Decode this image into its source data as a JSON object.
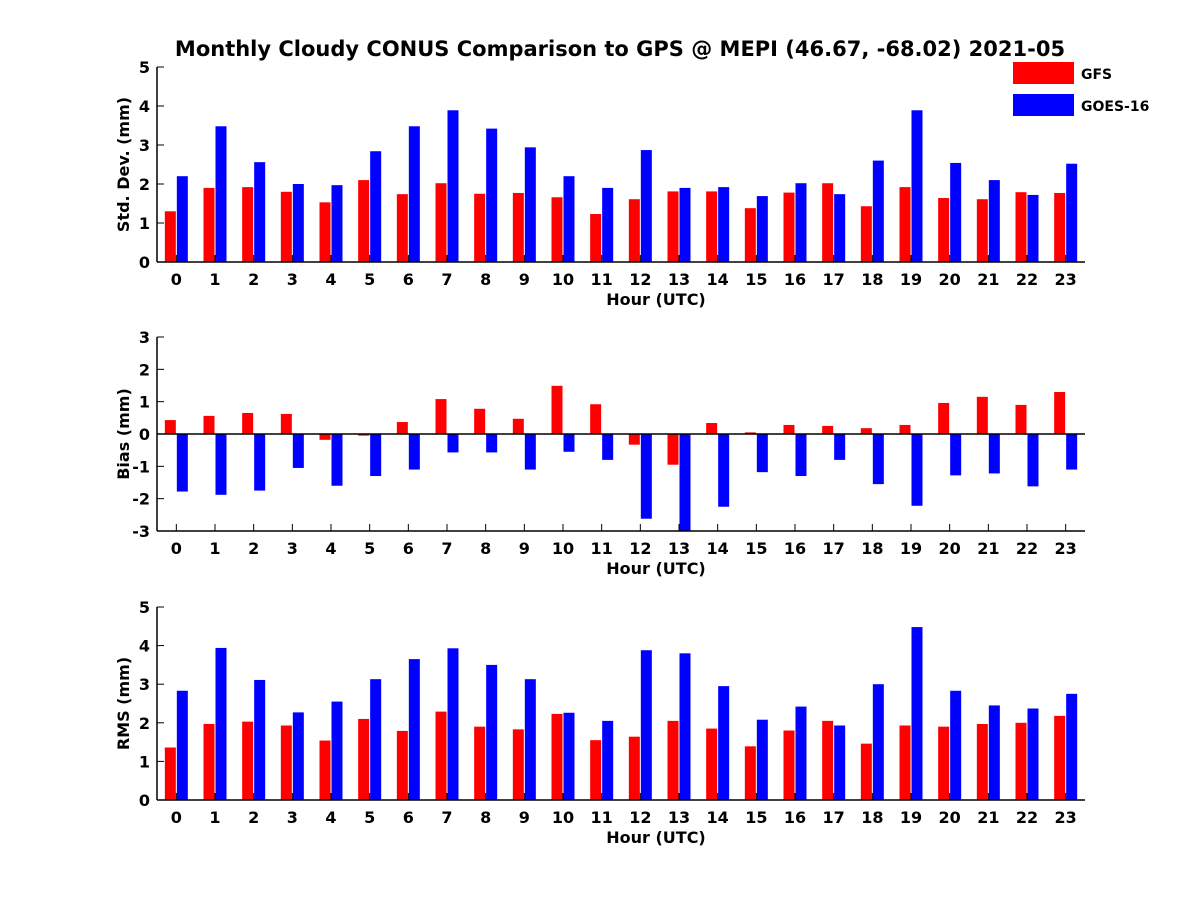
{
  "chart_data": {
    "title": "Monthly Cloudy CONUS Comparison to GPS @ MEPI (46.67, -68.02) 2021-05",
    "legend": {
      "placement": "top-right",
      "entries": [
        {
          "name": "GFS",
          "color": "#ff0000"
        },
        {
          "name": "GOES-16",
          "color": "#0000ff"
        }
      ]
    },
    "categories": [
      "0",
      "1",
      "2",
      "3",
      "4",
      "5",
      "6",
      "7",
      "8",
      "9",
      "10",
      "11",
      "12",
      "13",
      "14",
      "15",
      "16",
      "17",
      "18",
      "19",
      "20",
      "21",
      "22",
      "23"
    ],
    "panels": [
      {
        "type": "bar",
        "xlabel": "Hour (UTC)",
        "ylabel": "Std. Dev. (mm)",
        "ylim": [
          0,
          5
        ],
        "yticks": [
          "0",
          "1",
          "2",
          "3",
          "4",
          "5"
        ],
        "series": [
          {
            "name": "GFS",
            "color": "#ff0000",
            "values": [
              1.3,
              1.9,
              1.92,
              1.8,
              1.53,
              2.1,
              1.74,
              2.02,
              1.75,
              1.77,
              1.66,
              1.23,
              1.61,
              1.81,
              1.81,
              1.38,
              1.78,
              2.02,
              1.43,
              1.92,
              1.64,
              1.61,
              1.79,
              1.77
            ]
          },
          {
            "name": "GOES-16",
            "color": "#0000ff",
            "values": [
              2.2,
              3.48,
              2.56,
              2.0,
              1.97,
              2.84,
              3.48,
              3.89,
              3.42,
              2.94,
              2.2,
              1.9,
              2.87,
              1.9,
              1.92,
              1.69,
              2.02,
              1.74,
              2.6,
              3.89,
              2.54,
              2.1,
              1.72,
              2.52
            ]
          }
        ]
      },
      {
        "type": "bar",
        "xlabel": "Hour (UTC)",
        "ylabel": "Bias (mm)",
        "ylim": [
          -3,
          3
        ],
        "yticks": [
          "-3",
          "-2",
          "-1",
          "0",
          "1",
          "2",
          "3"
        ],
        "series": [
          {
            "name": "GFS",
            "color": "#ff0000",
            "values": [
              0.43,
              0.56,
              0.65,
              0.62,
              -0.18,
              -0.05,
              0.37,
              1.08,
              0.78,
              0.47,
              1.49,
              0.92,
              -0.33,
              -0.95,
              0.34,
              0.05,
              0.28,
              0.25,
              0.18,
              0.28,
              0.96,
              1.15,
              0.9,
              1.3
            ]
          },
          {
            "name": "GOES-16",
            "color": "#0000ff",
            "values": [
              -1.78,
              -1.88,
              -1.75,
              -1.05,
              -1.6,
              -1.3,
              -1.1,
              -0.57,
              -0.57,
              -1.1,
              -0.55,
              -0.8,
              -2.62,
              -3.0,
              -2.25,
              -1.18,
              -1.3,
              -0.8,
              -1.55,
              -2.22,
              -1.28,
              -1.22,
              -1.62,
              -1.1
            ]
          }
        ]
      },
      {
        "type": "bar",
        "xlabel": "Hour (UTC)",
        "ylabel": "RMS (mm)",
        "ylim": [
          0,
          5
        ],
        "yticks": [
          "0",
          "1",
          "2",
          "3",
          "4",
          "5"
        ],
        "series": [
          {
            "name": "GFS",
            "color": "#ff0000",
            "values": [
              1.36,
              1.97,
              2.03,
              1.93,
              1.54,
              2.1,
              1.79,
              2.29,
              1.9,
              1.83,
              2.23,
              1.55,
              1.64,
              2.05,
              1.85,
              1.39,
              1.8,
              2.05,
              1.46,
              1.93,
              1.9,
              1.97,
              2.0,
              2.18
            ]
          },
          {
            "name": "GOES-16",
            "color": "#0000ff",
            "values": [
              2.83,
              3.94,
              3.11,
              2.27,
              2.55,
              3.13,
              3.65,
              3.93,
              3.5,
              3.13,
              2.26,
              2.05,
              3.88,
              3.8,
              2.95,
              2.08,
              2.42,
              1.93,
              3.0,
              4.48,
              2.83,
              2.45,
              2.37,
              2.75
            ]
          }
        ]
      }
    ]
  }
}
